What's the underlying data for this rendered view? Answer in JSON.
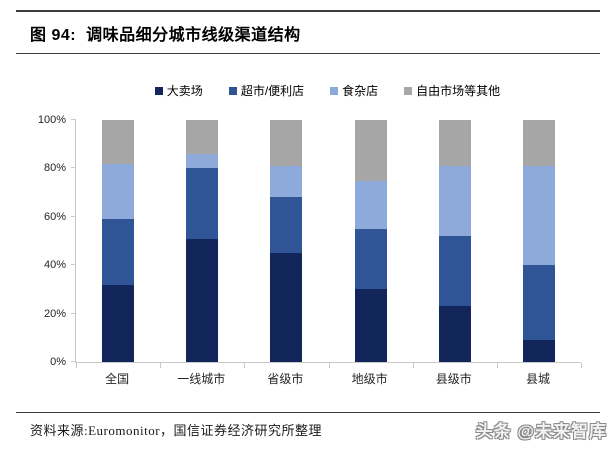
{
  "title": {
    "figure_label": "图 94:",
    "text": "调味品细分城市线级渠道结构"
  },
  "chart_data": {
    "type": "bar",
    "stacked": true,
    "orientation": "vertical",
    "title": "调味品细分城市线级渠道结构",
    "categories": [
      "全国",
      "一线城市",
      "省级市",
      "地级市",
      "县级市",
      "县城"
    ],
    "series": [
      {
        "name": "大卖场",
        "color": "#13265b",
        "values": [
          32,
          51,
          45,
          30,
          23,
          9
        ]
      },
      {
        "name": "超市/便利店",
        "color": "#2f5597",
        "values": [
          27,
          29,
          23,
          25,
          29,
          31
        ]
      },
      {
        "name": "食杂店",
        "color": "#8eaadb",
        "values": [
          23,
          6,
          13,
          20,
          29,
          41
        ]
      },
      {
        "name": "自由市场等其他",
        "color": "#a6a6a6",
        "values": [
          18,
          14,
          19,
          25,
          19,
          19
        ]
      }
    ],
    "value_unit": "%",
    "ylim": [
      0,
      100
    ],
    "y_ticks": [
      "100%",
      "80%",
      "60%",
      "40%",
      "20%",
      "0%"
    ],
    "grid": false,
    "legend_position": "top"
  },
  "footer": {
    "source": "资料来源:Euromonitor，国信证券经济研究所整理",
    "watermark": "头条 @未来智库"
  }
}
